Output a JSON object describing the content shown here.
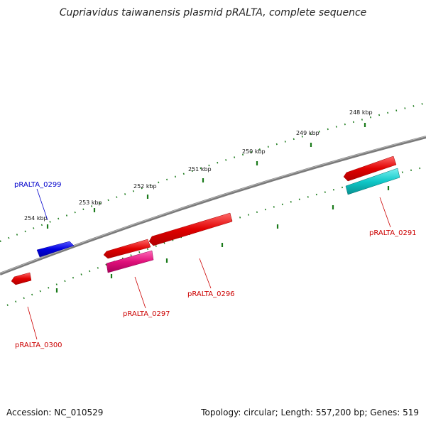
{
  "title": "Cupriavidus taiwanensis plasmid pRALTA, complete sequence",
  "footer": {
    "accession_label": "Accession:",
    "accession": "NC_010529",
    "topology_label": "Topology:",
    "topology": "circular",
    "length_label": "Length:",
    "length": "557,200 bp",
    "genes_label": "Genes:",
    "genes": "519"
  },
  "colors": {
    "backbone": "#7a7a7a",
    "tick": "#1a7a1a",
    "gene_red": "#e00000",
    "gene_blue": "#0000e0",
    "gene_magenta": "#e0107a",
    "gene_cyan": "#10c8c8",
    "label_red": "#cc0000",
    "label_blue": "#0000cc"
  },
  "ticks": [
    "254 kbp",
    "253 kbp",
    "252 kbp",
    "251 kbp",
    "250 kbp",
    "249 kbp",
    "248 kbp"
  ],
  "genes": [
    {
      "name": "pRALTA_0299",
      "color": "blue"
    },
    {
      "name": "pRALTA_0291",
      "color": "red"
    },
    {
      "name": "pRALTA_0296",
      "color": "red"
    },
    {
      "name": "pRALTA_0297",
      "color": "red"
    },
    {
      "name": "pRALTA_0300",
      "color": "red"
    }
  ]
}
